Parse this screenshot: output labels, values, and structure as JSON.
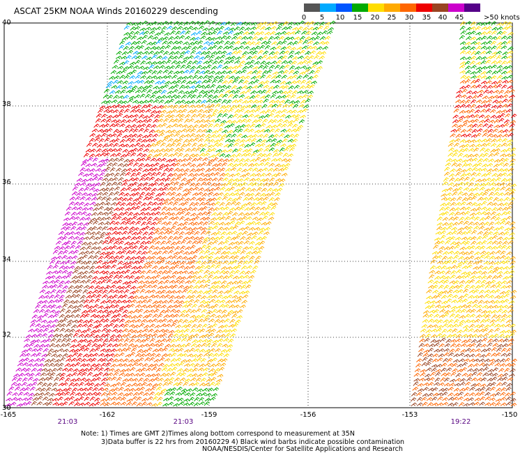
{
  "title": "ASCAT 25KM NOAA Winds 20160229 descending",
  "legend": {
    "labels": [
      "0",
      "5",
      "10",
      "15",
      "20",
      "25",
      "30",
      "35",
      "40",
      "45",
      ">50 knots"
    ],
    "colors": [
      "#555555",
      "#00aaff",
      "#0055ff",
      "#00aa00",
      "#ffdd00",
      "#ffaa00",
      "#ff6600",
      "#ee0000",
      "#994422",
      "#cc00cc",
      "#550088"
    ]
  },
  "axes": {
    "lat_labels": [
      "40",
      "38",
      "36",
      "34",
      "32",
      "30"
    ],
    "lon_labels": [
      "-165",
      "-162",
      "-159",
      "-156",
      "-153",
      "-150"
    ]
  },
  "times": [
    "21:03",
    "21:03",
    "19:22"
  ],
  "notes": {
    "line1": "Note: 1) Times are GMT 2)Times along bottom correspond to measurement at 35N",
    "line2": "3)Data buffer is 22 hrs from 20160229 4) Black wind barbs indicate possible contamination",
    "line3": "NOAA/NESDIS/Center for Satellite Applications and Research"
  }
}
